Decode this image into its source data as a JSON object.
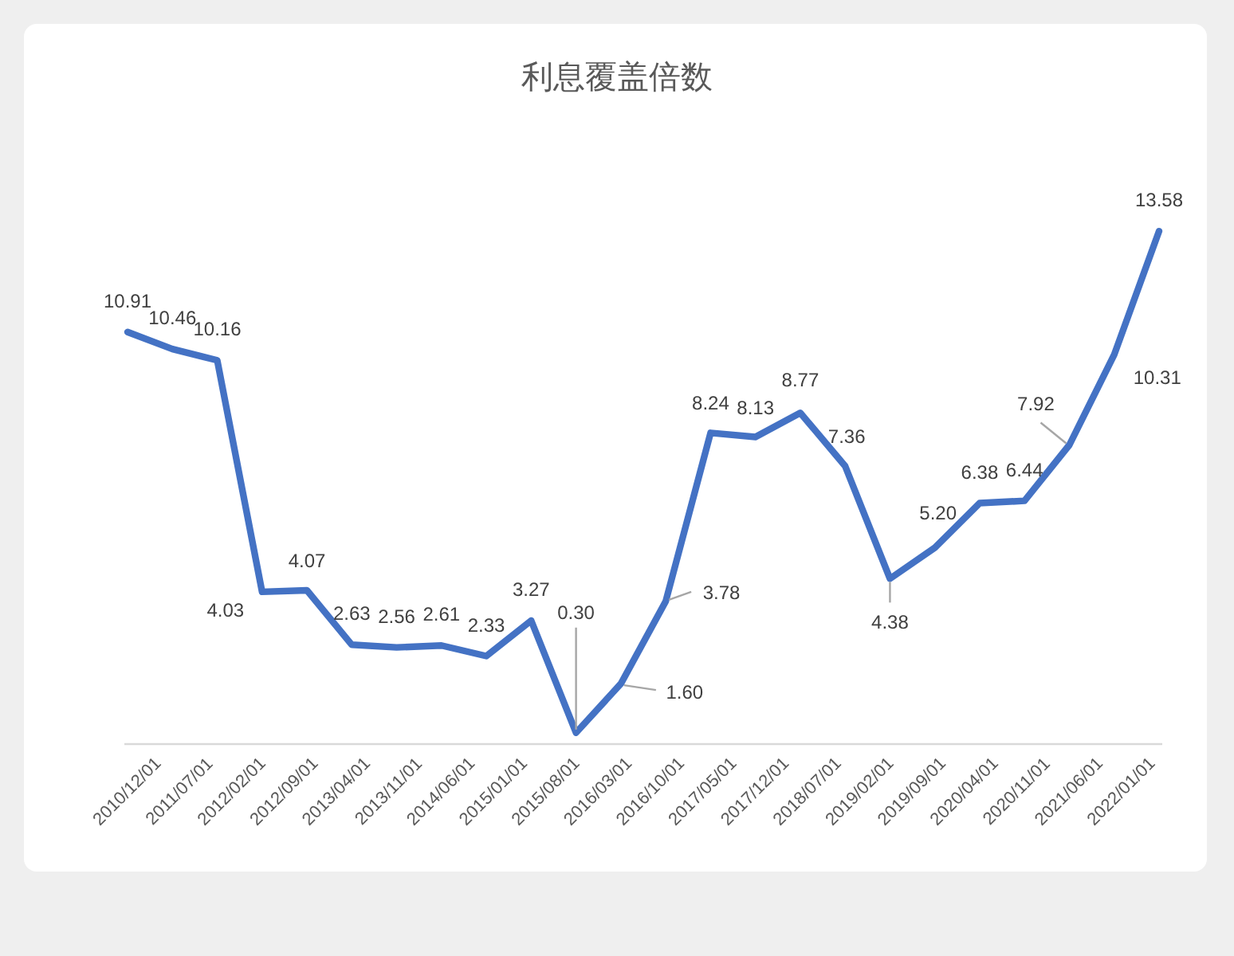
{
  "chart_data": {
    "type": "line",
    "title": "利息覆盖倍数",
    "x": [
      "2010-12",
      "2011-06",
      "2011-12",
      "2012-06",
      "2012-12",
      "2013-06",
      "2013-12",
      "2014-06",
      "2014-12",
      "2015-06",
      "2015-12",
      "2016-06",
      "2016-12",
      "2017-06",
      "2017-12",
      "2018-06",
      "2018-12",
      "2019-06",
      "2019-12",
      "2020-06",
      "2020-12",
      "2021-06",
      "2021-12",
      "2022-06"
    ],
    "values": [
      10.91,
      10.46,
      10.16,
      4.03,
      4.07,
      2.63,
      2.56,
      2.61,
      2.33,
      3.27,
      0.3,
      1.6,
      3.78,
      8.24,
      8.13,
      8.77,
      7.36,
      4.38,
      5.2,
      6.38,
      6.44,
      7.92,
      10.31,
      13.58
    ],
    "value_labels": [
      "10.91",
      "10.46",
      "10.16",
      "4.03",
      "4.07",
      "2.63",
      "2.56",
      "2.61",
      "2.33",
      "3.27",
      "0.30",
      "1.60",
      "3.78",
      "8.24",
      "8.13",
      "8.77",
      "7.36",
      "4.38",
      "5.20",
      "6.38",
      "6.44",
      "7.92",
      "10.31",
      "13.58"
    ],
    "color": "#4472c4",
    "xlim": [
      "2010-12",
      "2022-06"
    ],
    "xticks": [
      {
        "value": "2010-12-01",
        "label": "2010/12/01"
      },
      {
        "value": "2011-07-01",
        "label": "2011/07/01"
      },
      {
        "value": "2012-02-01",
        "label": "2012/02/01"
      },
      {
        "value": "2012-09-01",
        "label": "2012/09/01"
      },
      {
        "value": "2013-04-01",
        "label": "2013/04/01"
      },
      {
        "value": "2013-11-01",
        "label": "2013/11/01"
      },
      {
        "value": "2014-06-01",
        "label": "2014/06/01"
      },
      {
        "value": "2015-01-01",
        "label": "2015/01/01"
      },
      {
        "value": "2015-08-01",
        "label": "2015/08/01"
      },
      {
        "value": "2016-03-01",
        "label": "2016/03/01"
      },
      {
        "value": "2016-10-01",
        "label": "2016/10/01"
      },
      {
        "value": "2017-05-01",
        "label": "2017/05/01"
      },
      {
        "value": "2017-12-01",
        "label": "2017/12/01"
      },
      {
        "value": "2018-07-01",
        "label": "2018/07/01"
      },
      {
        "value": "2019-02-01",
        "label": "2019/02/01"
      },
      {
        "value": "2019-09-01",
        "label": "2019/09/01"
      },
      {
        "value": "2020-04-01",
        "label": "2020/04/01"
      },
      {
        "value": "2020-11-01",
        "label": "2020/11/01"
      },
      {
        "value": "2021-06-01",
        "label": "2021/06/01"
      },
      {
        "value": "2022-01-01",
        "label": "2022/01/01"
      }
    ],
    "tick_labels": "x"
  }
}
